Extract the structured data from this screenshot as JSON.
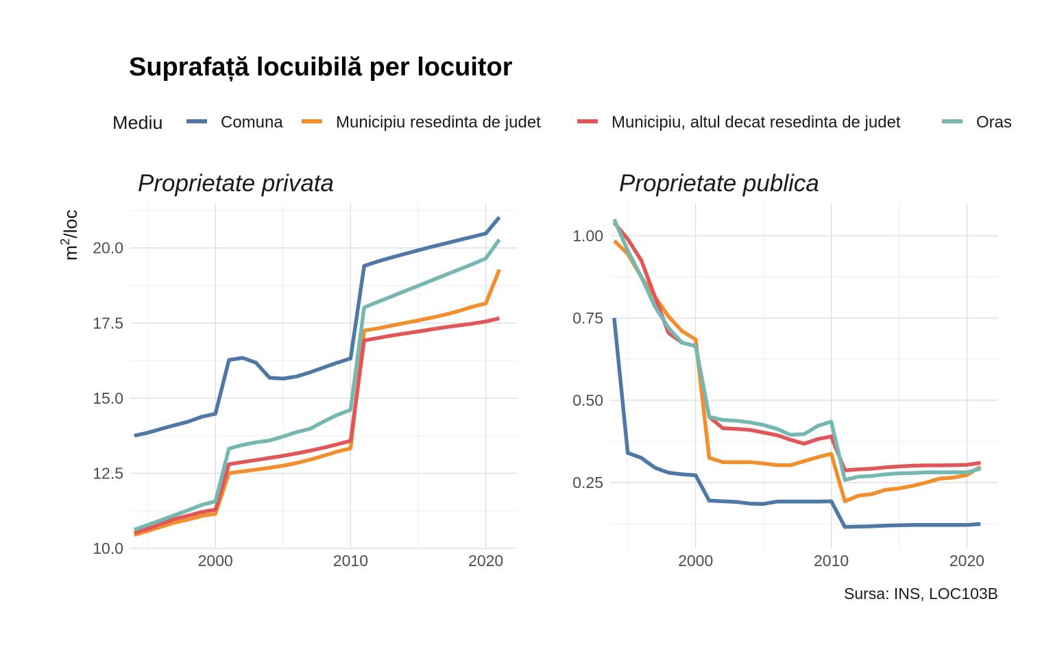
{
  "chart": {
    "title": "Suprafață locuibilă per locuitor",
    "legend_title": "Mediu",
    "caption": "Sursa: INS, LOC103B",
    "ylabel_base": "m",
    "ylabel_sup": "2",
    "ylabel_rest": "/loc"
  },
  "chart_data": {
    "type": "line",
    "legend_position": "top",
    "grid": true,
    "series_styles": [
      {
        "name": "Comuna",
        "color": "#4E79A7"
      },
      {
        "name": "Municipiu resedinta de judet",
        "color": "#F28E2B"
      },
      {
        "name": "Municipiu, altul decat resedinta de judet",
        "color": "#E15759"
      },
      {
        "name": "Oras",
        "color": "#76B7B2"
      }
    ],
    "panels": [
      {
        "title": "Proprietate privata",
        "xlim": [
          1993.7,
          2022.3
        ],
        "ylim": [
          10.0,
          21.5
        ],
        "xticks": [
          2000,
          2010,
          2020
        ],
        "xtick_labels": [
          "2000",
          "2010",
          "2020"
        ],
        "yticks": [
          10.0,
          12.5,
          15.0,
          17.5,
          20.0
        ],
        "ytick_labels": [
          "10.0",
          "12.5",
          "15.0",
          "17.5",
          "20.0"
        ],
        "x": [
          1994,
          1995,
          1996,
          1997,
          1998,
          1999,
          2000,
          2001,
          2002,
          2003,
          2004,
          2005,
          2006,
          2007,
          2008,
          2009,
          2010,
          2011,
          2012,
          2013,
          2014,
          2015,
          2016,
          2017,
          2018,
          2019,
          2020,
          2021
        ],
        "series": [
          {
            "name": "Comuna",
            "values": [
              13.75,
              13.85,
              13.98,
              14.1,
              14.22,
              14.38,
              14.48,
              16.27,
              16.34,
              16.18,
              15.68,
              15.65,
              15.72,
              15.86,
              16.02,
              16.18,
              16.32,
              19.4,
              19.55,
              19.68,
              19.8,
              19.92,
              20.04,
              20.15,
              20.26,
              20.37,
              20.48,
              21.02
            ]
          },
          {
            "name": "Municipiu resedinta de judet",
            "values": [
              10.45,
              10.58,
              10.72,
              10.86,
              10.96,
              11.08,
              11.15,
              12.5,
              12.56,
              12.62,
              12.68,
              12.75,
              12.84,
              12.95,
              13.08,
              13.22,
              13.33,
              17.25,
              17.32,
              17.41,
              17.5,
              17.59,
              17.68,
              17.78,
              17.9,
              18.04,
              18.15,
              19.28
            ]
          },
          {
            "name": "Municipiu, altul decat resedinta de judet",
            "values": [
              10.52,
              10.66,
              10.82,
              10.98,
              11.09,
              11.21,
              11.29,
              12.8,
              12.87,
              12.94,
              13.01,
              13.08,
              13.16,
              13.25,
              13.35,
              13.46,
              13.58,
              16.92,
              17.0,
              17.08,
              17.15,
              17.22,
              17.29,
              17.36,
              17.42,
              17.48,
              17.55,
              17.66
            ]
          },
          {
            "name": "Oras",
            "values": [
              10.62,
              10.78,
              10.94,
              11.11,
              11.27,
              11.45,
              11.56,
              13.32,
              13.44,
              13.53,
              13.59,
              13.72,
              13.87,
              13.98,
              14.22,
              14.44,
              14.61,
              18.02,
              18.2,
              18.38,
              18.56,
              18.74,
              18.92,
              19.1,
              19.28,
              19.46,
              19.65,
              20.28
            ]
          }
        ]
      },
      {
        "title": "Proprietate publica",
        "xlim": [
          1993.7,
          2022.3
        ],
        "ylim": [
          0.05,
          1.1
        ],
        "xticks": [
          2000,
          2010,
          2020
        ],
        "xtick_labels": [
          "2000",
          "2010",
          "2020"
        ],
        "yticks": [
          0.25,
          0.5,
          0.75,
          1.0
        ],
        "ytick_labels": [
          "0.25",
          "0.50",
          "0.75",
          "1.00"
        ],
        "x": [
          1994,
          1995,
          1996,
          1997,
          1998,
          1999,
          2000,
          2001,
          2002,
          2003,
          2004,
          2005,
          2006,
          2007,
          2008,
          2009,
          2010,
          2011,
          2012,
          2013,
          2014,
          2015,
          2016,
          2017,
          2018,
          2019,
          2020,
          2021
        ],
        "series": [
          {
            "name": "Comuna",
            "values": [
              0.75,
              0.34,
              0.325,
              0.295,
              0.28,
              0.275,
              0.272,
              0.195,
              0.193,
              0.191,
              0.186,
              0.185,
              0.192,
              0.192,
              0.192,
              0.192,
              0.193,
              0.115,
              0.116,
              0.117,
              0.119,
              0.12,
              0.121,
              0.121,
              0.121,
              0.121,
              0.121,
              0.124
            ]
          },
          {
            "name": "Municipiu resedinta de judet",
            "values": [
              0.985,
              0.945,
              0.875,
              0.815,
              0.755,
              0.71,
              0.685,
              0.325,
              0.312,
              0.312,
              0.312,
              0.308,
              0.303,
              0.303,
              0.315,
              0.327,
              0.337,
              0.193,
              0.21,
              0.215,
              0.228,
              0.232,
              0.24,
              0.25,
              0.262,
              0.265,
              0.273,
              0.298
            ]
          },
          {
            "name": "Municipiu, altul decat resedinta de judet",
            "values": [
              1.04,
              0.99,
              0.925,
              0.815,
              0.705,
              0.675,
              0.665,
              0.45,
              0.415,
              0.413,
              0.41,
              0.402,
              0.394,
              0.38,
              0.368,
              0.382,
              0.39,
              0.287,
              0.29,
              0.292,
              0.296,
              0.299,
              0.301,
              0.302,
              0.302,
              0.303,
              0.304,
              0.31
            ]
          },
          {
            "name": "Oras",
            "values": [
              1.05,
              0.955,
              0.875,
              0.785,
              0.72,
              0.675,
              0.665,
              0.45,
              0.44,
              0.438,
              0.433,
              0.425,
              0.413,
              0.395,
              0.397,
              0.422,
              0.435,
              0.258,
              0.268,
              0.27,
              0.275,
              0.278,
              0.279,
              0.281,
              0.281,
              0.281,
              0.281,
              0.292
            ]
          }
        ]
      }
    ]
  }
}
